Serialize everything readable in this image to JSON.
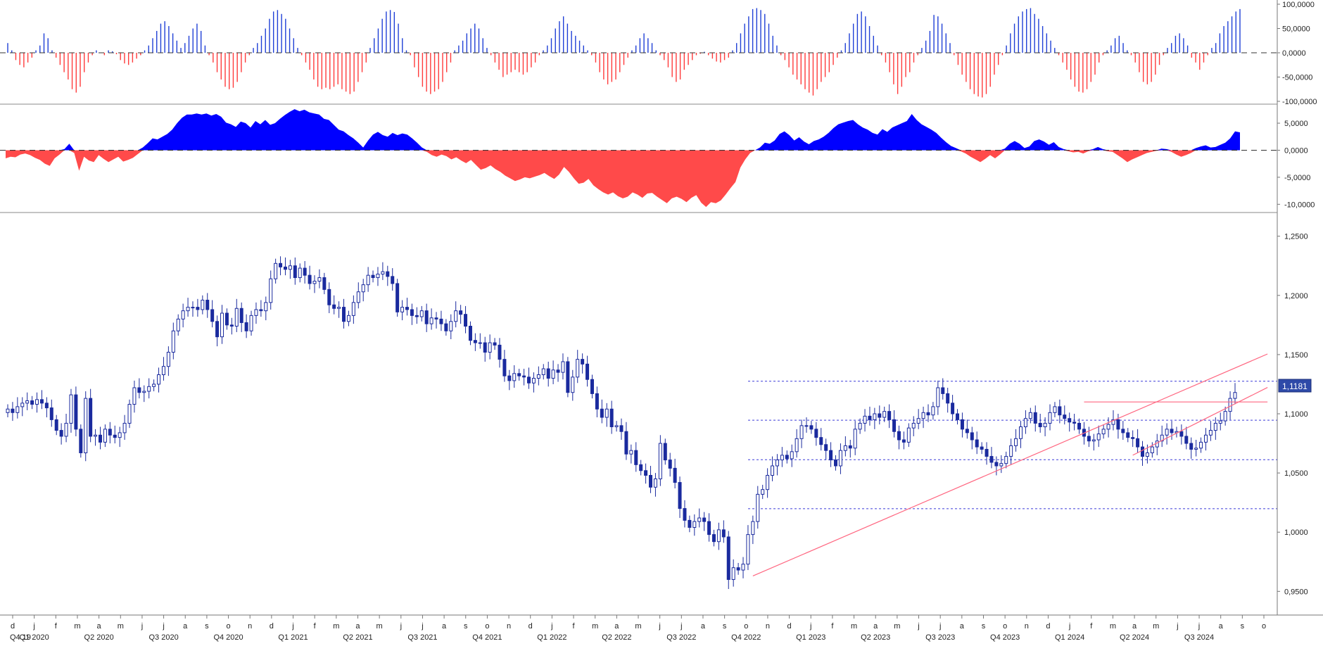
{
  "chart_data": [
    {
      "type": "bar",
      "title": "",
      "ylim": [
        -100000,
        100000
      ],
      "y_ticks": [
        "100,0000",
        "50,0000",
        "0,0000",
        "-50,0000",
        "-100,0000"
      ],
      "y_tick_values": [
        100000,
        50000,
        0,
        -50000,
        -100000
      ],
      "colors": {
        "positive": "#1f3fd6",
        "negative": "#ff3b3b"
      },
      "values": [
        20000,
        5000,
        -15000,
        -25000,
        -30000,
        -20000,
        -10000,
        5000,
        15000,
        40000,
        30000,
        5000,
        -10000,
        -25000,
        -40000,
        -55000,
        -75000,
        -82000,
        -70000,
        -40000,
        -20000,
        -5000,
        5000,
        0,
        -5000,
        5000,
        3000,
        -3000,
        -15000,
        -22000,
        -25000,
        -20000,
        -12000,
        -5000,
        5000,
        15000,
        30000,
        45000,
        60000,
        65000,
        55000,
        40000,
        25000,
        10000,
        20000,
        35000,
        50000,
        60000,
        45000,
        15000,
        -5000,
        -20000,
        -40000,
        -55000,
        -70000,
        -75000,
        -72000,
        -60000,
        -40000,
        -20000,
        -5000,
        10000,
        20000,
        35000,
        50000,
        70000,
        85000,
        88000,
        80000,
        70000,
        50000,
        30000,
        10000,
        -5000,
        -20000,
        -35000,
        -55000,
        -70000,
        -75000,
        -72000,
        -75000,
        -70000,
        -65000,
        -75000,
        -80000,
        -85000,
        -80000,
        -60000,
        -40000,
        -20000,
        10000,
        30000,
        50000,
        70000,
        85000,
        88000,
        84000,
        60000,
        30000,
        5000,
        -5000,
        -30000,
        -50000,
        -70000,
        -80000,
        -85000,
        -80000,
        -75000,
        -60000,
        -40000,
        -20000,
        5000,
        15000,
        25000,
        40000,
        50000,
        60000,
        50000,
        30000,
        10000,
        -5000,
        -20000,
        -35000,
        -50000,
        -45000,
        -40000,
        -35000,
        -40000,
        -45000,
        -40000,
        -30000,
        -20000,
        -5000,
        5000,
        15000,
        30000,
        50000,
        65000,
        75000,
        60000,
        45000,
        35000,
        25000,
        15000,
        5000,
        -5000,
        -20000,
        -40000,
        -55000,
        -65000,
        -60000,
        -55000,
        -40000,
        -25000,
        -10000,
        5000,
        15000,
        30000,
        40000,
        30000,
        20000,
        5000,
        -5000,
        -15000,
        -30000,
        -50000,
        -60000,
        -55000,
        -35000,
        -25000,
        -15000,
        -5000,
        -2000,
        2000,
        -5000,
        -12000,
        -18000,
        -20000,
        -15000,
        -10000,
        5000,
        20000,
        40000,
        60000,
        75000,
        90000,
        92000,
        88000,
        80000,
        60000,
        35000,
        15000,
        -5000,
        -15000,
        -30000,
        -45000,
        -55000,
        -65000,
        -75000,
        -82000,
        -88000,
        -75000,
        -60000,
        -50000,
        -40000,
        -25000,
        -10000,
        5000,
        20000,
        40000,
        60000,
        80000,
        85000,
        75000,
        55000,
        35000,
        15000,
        -5000,
        -20000,
        -40000,
        -65000,
        -85000,
        -70000,
        -50000,
        -40000,
        -20000,
        -5000,
        10000,
        25000,
        45000,
        78000,
        75000,
        60000,
        40000,
        20000,
        -5000,
        -25000,
        -45000,
        -60000,
        -75000,
        -85000,
        -90000,
        -92000,
        -85000,
        -70000,
        -45000,
        -25000,
        -5000,
        15000,
        40000,
        60000,
        75000,
        85000,
        90000,
        92000,
        80000,
        70000,
        55000,
        40000,
        25000,
        10000,
        -5000,
        -20000,
        -35000,
        -55000,
        -70000,
        -80000,
        -82000,
        -75000,
        -60000,
        -45000,
        -20000,
        -5000,
        5000,
        15000,
        30000,
        35000,
        20000,
        5000,
        -5000,
        -20000,
        -40000,
        -60000,
        -65000,
        -60000,
        -45000,
        -25000,
        -5000,
        10000,
        20000,
        35000,
        40000,
        30000,
        15000,
        -10000,
        -20000,
        -35000,
        -20000,
        -5000,
        10000,
        20000,
        40000,
        55000,
        65000,
        75000,
        85000,
        90000
      ]
    },
    {
      "type": "area",
      "title": "",
      "ylim": [
        -11000,
        8000
      ],
      "y_ticks": [
        "5,0000",
        "0,0000",
        "-5,0000",
        "-10,0000"
      ],
      "y_tick_values": [
        5000,
        0,
        -5000,
        -10000
      ],
      "colors": {
        "positive": "#0000ff",
        "negative": "#ff4a4a"
      },
      "values": [
        -1500,
        -1200,
        -1300,
        -800,
        -600,
        -900,
        -1400,
        -1800,
        -2500,
        -2900,
        -1500,
        -800,
        200,
        1200,
        -500,
        -3800,
        -1200,
        -1900,
        -2200,
        -900,
        -1600,
        -2200,
        -1700,
        -1200,
        -2100,
        -1800,
        -1400,
        -700,
        500,
        1300,
        2200,
        2000,
        2500,
        3000,
        3800,
        5000,
        6000,
        6600,
        6600,
        6800,
        6600,
        6800,
        6400,
        6700,
        6200,
        5100,
        4800,
        4300,
        5300,
        5000,
        4200,
        5400,
        4800,
        5600,
        4700,
        5000,
        5800,
        6500,
        7100,
        7600,
        7200,
        7500,
        7000,
        6800,
        6600,
        5800,
        5600,
        4700,
        3800,
        3500,
        2800,
        2200,
        1400,
        500,
        1800,
        2900,
        3400,
        2800,
        2500,
        3200,
        2800,
        3100,
        2900,
        2200,
        1400,
        500,
        -300,
        -900,
        -1200,
        -800,
        -1100,
        -1700,
        -1300,
        -1900,
        -2400,
        -1800,
        -2700,
        -3600,
        -3300,
        -2800,
        -3500,
        -4000,
        -4700,
        -5200,
        -5700,
        -5400,
        -5000,
        -5200,
        -4900,
        -4600,
        -4200,
        -4800,
        -5300,
        -4500,
        -3100,
        -4000,
        -5200,
        -6200,
        -6000,
        -5300,
        -6500,
        -7200,
        -7800,
        -8200,
        -7800,
        -8500,
        -8900,
        -8600,
        -7800,
        -8200,
        -8800,
        -8000,
        -7900,
        -8600,
        -9200,
        -9800,
        -8900,
        -8600,
        -9000,
        -9600,
        -8800,
        -8300,
        -9700,
        -10500,
        -9600,
        -9800,
        -9300,
        -8200,
        -7000,
        -5900,
        -3200,
        -1700,
        -500,
        0,
        500,
        1400,
        1200,
        1800,
        3000,
        3500,
        2800,
        1800,
        2400,
        1600,
        1100,
        1700,
        2000,
        2500,
        3200,
        4100,
        4800,
        5100,
        5400,
        5600,
        4800,
        4200,
        3800,
        3200,
        2900,
        3900,
        3400,
        4200,
        4600,
        5000,
        5400,
        6700,
        5600,
        4800,
        4300,
        3800,
        3200,
        2300,
        1500,
        800,
        400,
        -200,
        -600,
        -1200,
        -1700,
        -2200,
        -1600,
        -900,
        -1500,
        -800,
        300,
        1200,
        1700,
        1200,
        400,
        700,
        1700,
        2000,
        1600,
        1000,
        1500,
        600,
        200,
        -200,
        -400,
        -300,
        -600,
        -200,
        200,
        600,
        200,
        -200,
        -300,
        -900,
        -1500,
        -2200,
        -1700,
        -1300,
        -900,
        -500,
        -300,
        -100,
        300,
        200,
        -300,
        -800,
        -1200,
        -900,
        -500,
        400,
        700,
        900,
        500,
        600,
        1000,
        1400,
        2200,
        3500,
        3300
      ]
    },
    {
      "type": "candlestick",
      "title": "",
      "ylim": [
        0.93,
        1.27
      ],
      "y_ticks": [
        "1,2500",
        "1,2000",
        "1,1500",
        "1,1000",
        "1,0500",
        "1,0000",
        "0,9500"
      ],
      "y_tick_values": [
        1.25,
        1.2,
        1.15,
        1.1,
        1.05,
        1.0,
        0.95
      ],
      "colors": {
        "up_fill": "#ffffff",
        "up_stroke": "#1a2a9e",
        "down": "#1a2a9e",
        "support_lines": "#3b3bd8",
        "trend_lines": "#ff6680"
      },
      "close": [
        1.104,
        1.101,
        1.106,
        1.109,
        1.111,
        1.108,
        1.112,
        1.109,
        1.105,
        1.095,
        1.086,
        1.081,
        1.092,
        1.116,
        1.087,
        1.067,
        1.113,
        1.081,
        1.082,
        1.076,
        1.087,
        1.082,
        1.08,
        1.084,
        1.092,
        1.108,
        1.122,
        1.118,
        1.119,
        1.123,
        1.125,
        1.133,
        1.14,
        1.152,
        1.17,
        1.18,
        1.187,
        1.19,
        1.19,
        1.188,
        1.196,
        1.188,
        1.178,
        1.165,
        1.185,
        1.175,
        1.174,
        1.189,
        1.177,
        1.17,
        1.183,
        1.188,
        1.187,
        1.194,
        1.214,
        1.227,
        1.224,
        1.222,
        1.225,
        1.215,
        1.223,
        1.217,
        1.21,
        1.212,
        1.215,
        1.205,
        1.192,
        1.189,
        1.19,
        1.178,
        1.183,
        1.194,
        1.203,
        1.209,
        1.217,
        1.215,
        1.218,
        1.22,
        1.216,
        1.21,
        1.186,
        1.19,
        1.188,
        1.183,
        1.182,
        1.187,
        1.176,
        1.181,
        1.18,
        1.176,
        1.17,
        1.178,
        1.187,
        1.184,
        1.174,
        1.162,
        1.16,
        1.16,
        1.152,
        1.16,
        1.158,
        1.146,
        1.132,
        1.128,
        1.134,
        1.132,
        1.131,
        1.126,
        1.13,
        1.133,
        1.138,
        1.13,
        1.137,
        1.135,
        1.144,
        1.118,
        1.131,
        1.146,
        1.142,
        1.129,
        1.117,
        1.104,
        1.097,
        1.104,
        1.089,
        1.09,
        1.085,
        1.066,
        1.069,
        1.057,
        1.052,
        1.048,
        1.038,
        1.045,
        1.075,
        1.061,
        1.054,
        1.042,
        1.02,
        1.01,
        1.004,
        1.009,
        1.012,
        1.009,
        0.998,
        0.992,
        1.002,
        0.996,
        0.96,
        0.97,
        0.968,
        0.973,
        0.998,
        1.009,
        1.032,
        1.036,
        1.048,
        1.056,
        1.061,
        1.065,
        1.062,
        1.068,
        1.079,
        1.09,
        1.09,
        1.087,
        1.08,
        1.074,
        1.069,
        1.061,
        1.056,
        1.069,
        1.073,
        1.071,
        1.087,
        1.092,
        1.098,
        1.095,
        1.1,
        1.097,
        1.102,
        1.095,
        1.085,
        1.078,
        1.076,
        1.088,
        1.092,
        1.096,
        1.101,
        1.099,
        1.106,
        1.122,
        1.117,
        1.109,
        1.1,
        1.095,
        1.087,
        1.084,
        1.078,
        1.072,
        1.07,
        1.064,
        1.059,
        1.056,
        1.058,
        1.064,
        1.073,
        1.079,
        1.089,
        1.096,
        1.101,
        1.092,
        1.089,
        1.092,
        1.101,
        1.106,
        1.099,
        1.096,
        1.093,
        1.092,
        1.087,
        1.081,
        1.077,
        1.078,
        1.083,
        1.087,
        1.091,
        1.095,
        1.087,
        1.084,
        1.08,
        1.079,
        1.072,
        1.064,
        1.067,
        1.072,
        1.077,
        1.082,
        1.087,
        1.084,
        1.085,
        1.081,
        1.075,
        1.07,
        1.071,
        1.076,
        1.082,
        1.086,
        1.092,
        1.094,
        1.102,
        1.113,
        1.118
      ]
    }
  ],
  "price_tag": "1,1181",
  "x_axis": {
    "months": [
      "d",
      "j",
      "f",
      "m",
      "a",
      "m",
      "j",
      "j",
      "a",
      "s",
      "o",
      "n",
      "d",
      "j",
      "f",
      "m",
      "a",
      "m",
      "j",
      "j",
      "a",
      "s",
      "o",
      "n",
      "d",
      "j",
      "f",
      "m",
      "a",
      "m",
      "j",
      "j",
      "a",
      "s",
      "o",
      "n",
      "d",
      "j",
      "f",
      "m",
      "a",
      "m",
      "j",
      "j",
      "a",
      "s",
      "o",
      "n",
      "d",
      "j",
      "f",
      "m",
      "a",
      "m",
      "j",
      "j",
      "a",
      "s",
      "o"
    ],
    "quarters": [
      "Q4 19",
      "Q1 2020",
      "Q2 2020",
      "Q3 2020",
      "Q4 2020",
      "Q1 2021",
      "Q2 2021",
      "Q3 2021",
      "Q4 2021",
      "Q1 2022",
      "Q2 2022",
      "Q3 2022",
      "Q4 2022",
      "Q1 2023",
      "Q2 2023",
      "Q3 2023",
      "Q4 2023",
      "Q1 2024",
      "Q2 2024",
      "Q3 2024"
    ]
  },
  "reference_levels": [
    1.1275,
    1.0946,
    1.0612,
    1.0198
  ],
  "trend_lines": [
    {
      "from": {
        "bar": 153,
        "price": 0.963
      },
      "to": {
        "bar": 250,
        "price": 1.133
      }
    },
    {
      "from": {
        "bar": 221,
        "price": 1.11
      },
      "to": {
        "bar": 250,
        "price": 1.11
      }
    },
    {
      "from": {
        "bar": 231,
        "price": 1.065
      },
      "to": {
        "bar": 250,
        "price": 1.1025
      }
    }
  ]
}
